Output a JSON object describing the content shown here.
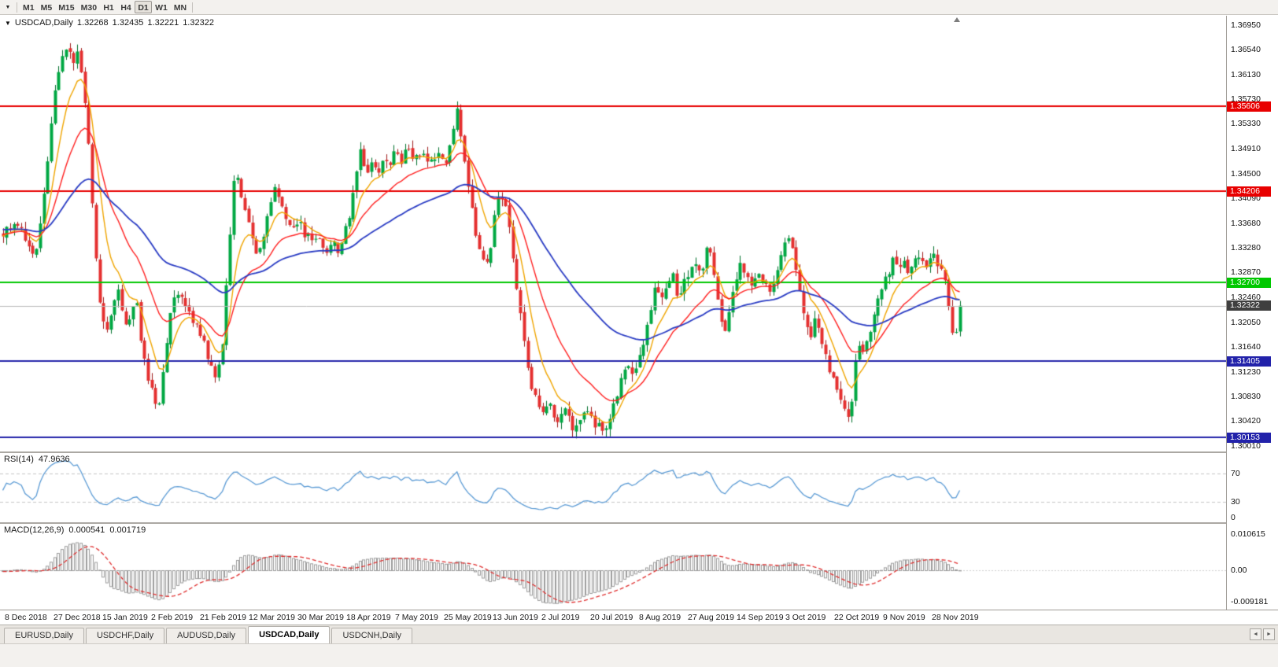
{
  "icons": {
    "toolbar_dropdown": "▼",
    "chart_title_arrow": "▼",
    "tab_scroll_left": "◄",
    "tab_scroll_right": "►"
  },
  "toolbar": {
    "timeframes": [
      "M1",
      "M5",
      "M15",
      "M30",
      "H1",
      "H4",
      "D1",
      "W1",
      "MN"
    ],
    "active_timeframe": "D1"
  },
  "chart": {
    "symbol_label": "USDCAD,Daily",
    "ohlc": {
      "open": "1.32268",
      "high": "1.32435",
      "low": "1.32221",
      "close": "1.32322"
    },
    "y_ticks": [
      "1.36950",
      "1.36540",
      "1.36130",
      "1.35730",
      "1.35330",
      "1.34910",
      "1.34500",
      "1.34090",
      "1.33680",
      "1.33280",
      "1.32870",
      "1.32460",
      "1.32050",
      "1.31640",
      "1.31230",
      "1.30830",
      "1.30420",
      "1.30010"
    ],
    "price_lines": [
      {
        "price": 1.35606,
        "label": "1.35606",
        "color": "#E80000"
      },
      {
        "price": 1.34206,
        "label": "1.34206",
        "color": "#E80000"
      },
      {
        "price": 1.327,
        "label": "1.32700",
        "color": "#00C800"
      },
      {
        "price": 1.31405,
        "label": "1.31405",
        "color": "#2222AA"
      },
      {
        "price": 1.30153,
        "label": "1.30153",
        "color": "#2222AA"
      }
    ],
    "current_price": {
      "value": 1.32322,
      "label": "1.32322",
      "color": "#3F3F3F"
    }
  },
  "rsi": {
    "title": "RSI(14)",
    "value": "47.9636",
    "levels": [
      "70",
      "30",
      "0"
    ],
    "line_color": "#5B9BD5"
  },
  "macd": {
    "title": "MACD(12,26,9)",
    "value1": "0.000541",
    "value2": "0.001719",
    "scale_labels": [
      "0.010615",
      "0.00",
      "-0.009181"
    ]
  },
  "x_axis": {
    "labels": [
      "8 Dec 2018",
      "27 Dec 2018",
      "15 Jan 2019",
      "2 Feb 2019",
      "21 Feb 2019",
      "12 Mar 2019",
      "30 Mar 2019",
      "18 Apr 2019",
      "7 May 2019",
      "25 May 2019",
      "13 Jun 2019",
      "2 Jul 2019",
      "20 Jul 2019",
      "8 Aug 2019",
      "27 Aug 2019",
      "14 Sep 2019",
      "3 Oct 2019",
      "22 Oct 2019",
      "9 Nov 2019",
      "28 Nov 2019"
    ]
  },
  "tabs": {
    "items": [
      "EURUSD,Daily",
      "USDCHF,Daily",
      "AUDUSD,Daily",
      "USDCAD,Daily",
      "USDCNH,Daily"
    ],
    "active": "USDCAD,Daily"
  },
  "chart_data": {
    "type": "candlestick",
    "symbol": "USDCAD",
    "timeframe": "Daily",
    "x_start": "8 Dec 2018",
    "x_end": "5 Dec 2019",
    "y_min": 1.2992,
    "y_max": 1.371,
    "candles_count": 258,
    "seed": 20191205,
    "noise": 0.0008,
    "wick": 0.0013,
    "warmup_start": 1.338,
    "up_color": "#00A843",
    "up_border": "#00702C",
    "down_color": "#E53030",
    "down_border": "#9E1A1A",
    "moving_averages": [
      {
        "period": 8,
        "type": "ema",
        "color": "#F0A500"
      },
      {
        "period": 20,
        "type": "ema",
        "color": "#FF2020"
      },
      {
        "period": 55,
        "type": "ema",
        "color": "#2A3CC4"
      }
    ],
    "rsi_period": 14,
    "rsi_levels": [
      70,
      30
    ],
    "macd_params": {
      "fast": 12,
      "slow": 26,
      "signal": 9
    },
    "macd_draw_range": [
      -0.0115,
      0.0135
    ],
    "price_anchors": [
      [
        0.0,
        1.3345
      ],
      [
        0.012,
        1.3375
      ],
      [
        0.024,
        1.334
      ],
      [
        0.034,
        1.3308
      ],
      [
        0.042,
        1.34
      ],
      [
        0.05,
        1.353
      ],
      [
        0.056,
        1.361
      ],
      [
        0.062,
        1.364
      ],
      [
        0.068,
        1.3662
      ],
      [
        0.073,
        1.3635
      ],
      [
        0.078,
        1.3645
      ],
      [
        0.083,
        1.36
      ],
      [
        0.088,
        1.3545
      ],
      [
        0.092,
        1.344
      ],
      [
        0.096,
        1.334
      ],
      [
        0.1,
        1.3245
      ],
      [
        0.105,
        1.32
      ],
      [
        0.11,
        1.3185
      ],
      [
        0.116,
        1.3235
      ],
      [
        0.122,
        1.3258
      ],
      [
        0.128,
        1.3195
      ],
      [
        0.134,
        1.3218
      ],
      [
        0.14,
        1.3232
      ],
      [
        0.146,
        1.3152
      ],
      [
        0.152,
        1.3108
      ],
      [
        0.158,
        1.3078
      ],
      [
        0.163,
        1.3068
      ],
      [
        0.17,
        1.3165
      ],
      [
        0.176,
        1.3222
      ],
      [
        0.182,
        1.3255
      ],
      [
        0.19,
        1.3235
      ],
      [
        0.198,
        1.3212
      ],
      [
        0.206,
        1.3188
      ],
      [
        0.212,
        1.3158
      ],
      [
        0.218,
        1.3128
      ],
      [
        0.224,
        1.3118
      ],
      [
        0.23,
        1.318
      ],
      [
        0.236,
        1.332
      ],
      [
        0.242,
        1.346
      ],
      [
        0.248,
        1.3425
      ],
      [
        0.254,
        1.3385
      ],
      [
        0.26,
        1.3348
      ],
      [
        0.266,
        1.3318
      ],
      [
        0.272,
        1.3345
      ],
      [
        0.278,
        1.34
      ],
      [
        0.284,
        1.3425
      ],
      [
        0.29,
        1.3405
      ],
      [
        0.296,
        1.3378
      ],
      [
        0.302,
        1.3358
      ],
      [
        0.308,
        1.3375
      ],
      [
        0.314,
        1.3355
      ],
      [
        0.32,
        1.3342
      ],
      [
        0.326,
        1.3352
      ],
      [
        0.332,
        1.3335
      ],
      [
        0.338,
        1.3322
      ],
      [
        0.344,
        1.334
      ],
      [
        0.35,
        1.3325
      ],
      [
        0.356,
        1.3345
      ],
      [
        0.362,
        1.338
      ],
      [
        0.368,
        1.344
      ],
      [
        0.374,
        1.349
      ],
      [
        0.38,
        1.3455
      ],
      [
        0.386,
        1.3465
      ],
      [
        0.392,
        1.3455
      ],
      [
        0.398,
        1.3475
      ],
      [
        0.404,
        1.3468
      ],
      [
        0.41,
        1.3482
      ],
      [
        0.416,
        1.347
      ],
      [
        0.422,
        1.3498
      ],
      [
        0.428,
        1.348
      ],
      [
        0.434,
        1.3475
      ],
      [
        0.44,
        1.348
      ],
      [
        0.446,
        1.3468
      ],
      [
        0.452,
        1.3478
      ],
      [
        0.458,
        1.3485
      ],
      [
        0.464,
        1.3462
      ],
      [
        0.47,
        1.352
      ],
      [
        0.474,
        1.3558
      ],
      [
        0.48,
        1.35
      ],
      [
        0.487,
        1.343
      ],
      [
        0.493,
        1.335
      ],
      [
        0.5,
        1.331
      ],
      [
        0.507,
        1.33
      ],
      [
        0.514,
        1.339
      ],
      [
        0.52,
        1.342
      ],
      [
        0.527,
        1.338
      ],
      [
        0.534,
        1.33
      ],
      [
        0.541,
        1.321
      ],
      [
        0.548,
        1.313
      ],
      [
        0.556,
        1.308
      ],
      [
        0.564,
        1.3055
      ],
      [
        0.572,
        1.3065
      ],
      [
        0.58,
        1.3045
      ],
      [
        0.588,
        1.306
      ],
      [
        0.596,
        1.303
      ],
      [
        0.604,
        1.3045
      ],
      [
        0.612,
        1.306
      ],
      [
        0.618,
        1.3025
      ],
      [
        0.624,
        1.304
      ],
      [
        0.63,
        1.302
      ],
      [
        0.636,
        1.306
      ],
      [
        0.644,
        1.31
      ],
      [
        0.652,
        1.3135
      ],
      [
        0.66,
        1.312
      ],
      [
        0.668,
        1.3155
      ],
      [
        0.676,
        1.322
      ],
      [
        0.682,
        1.328
      ],
      [
        0.688,
        1.324
      ],
      [
        0.694,
        1.327
      ],
      [
        0.7,
        1.3295
      ],
      [
        0.706,
        1.324
      ],
      [
        0.712,
        1.327
      ],
      [
        0.718,
        1.329
      ],
      [
        0.724,
        1.3305
      ],
      [
        0.73,
        1.3285
      ],
      [
        0.736,
        1.334
      ],
      [
        0.742,
        1.329
      ],
      [
        0.748,
        1.324
      ],
      [
        0.754,
        1.3185
      ],
      [
        0.76,
        1.323
      ],
      [
        0.766,
        1.328
      ],
      [
        0.772,
        1.33
      ],
      [
        0.778,
        1.3285
      ],
      [
        0.784,
        1.3265
      ],
      [
        0.79,
        1.329
      ],
      [
        0.796,
        1.3265
      ],
      [
        0.802,
        1.3255
      ],
      [
        0.808,
        1.328
      ],
      [
        0.814,
        1.332
      ],
      [
        0.82,
        1.334
      ],
      [
        0.826,
        1.332
      ],
      [
        0.832,
        1.3265
      ],
      [
        0.838,
        1.3205
      ],
      [
        0.844,
        1.3175
      ],
      [
        0.85,
        1.3215
      ],
      [
        0.856,
        1.3175
      ],
      [
        0.862,
        1.3135
      ],
      [
        0.868,
        1.3105
      ],
      [
        0.874,
        1.308
      ],
      [
        0.88,
        1.3058
      ],
      [
        0.884,
        1.3045
      ],
      [
        0.888,
        1.3085
      ],
      [
        0.892,
        1.317
      ],
      [
        0.897,
        1.3155
      ],
      [
        0.902,
        1.3175
      ],
      [
        0.907,
        1.3195
      ],
      [
        0.912,
        1.3235
      ],
      [
        0.917,
        1.3255
      ],
      [
        0.922,
        1.3275
      ],
      [
        0.927,
        1.3295
      ],
      [
        0.932,
        1.3312
      ],
      [
        0.937,
        1.3295
      ],
      [
        0.942,
        1.3305
      ],
      [
        0.947,
        1.3285
      ],
      [
        0.952,
        1.3305
      ],
      [
        0.957,
        1.3315
      ],
      [
        0.962,
        1.3295
      ],
      [
        0.967,
        1.3305
      ],
      [
        0.972,
        1.332
      ],
      [
        0.977,
        1.33
      ],
      [
        0.982,
        1.3295
      ],
      [
        0.987,
        1.324
      ],
      [
        0.991,
        1.3192
      ],
      [
        0.996,
        1.318
      ],
      [
        1.0,
        1.3232
      ]
    ]
  }
}
